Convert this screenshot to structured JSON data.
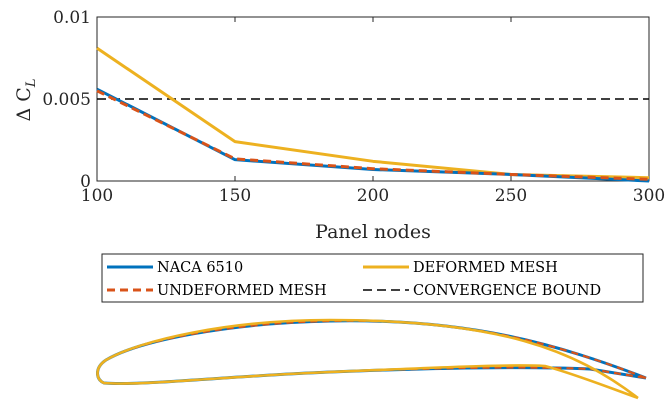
{
  "chart_data": {
    "type": "line",
    "xlabel": "Panel nodes",
    "ylabel": "Δ C",
    "ylabel_sub": "L",
    "xlim": [
      100,
      300
    ],
    "ylim": [
      0,
      0.01
    ],
    "xticks": [
      100,
      150,
      200,
      250,
      300
    ],
    "xtick_labels": [
      "100",
      "150",
      "200",
      "250",
      "300"
    ],
    "yticks": [
      0,
      0.005,
      0.01
    ],
    "ytick_labels": [
      "0",
      "0.005",
      "0.01"
    ],
    "grid": false,
    "legend_placement": "bottom",
    "x": [
      100,
      150,
      200,
      250,
      300
    ],
    "series": [
      {
        "name": "NACA 6510",
        "values": [
          0.0056,
          0.0013,
          0.0007,
          0.0004,
          0.0
        ],
        "color": "#0072BD",
        "style": "solid"
      },
      {
        "name": "UNDEFORMED MESH",
        "values": [
          0.0055,
          0.00135,
          0.00075,
          0.0004,
          0.0001
        ],
        "color": "#D95319",
        "style": "dashed"
      },
      {
        "name": "DEFORMED MESH",
        "values": [
          0.0081,
          0.0024,
          0.0012,
          0.0004,
          0.0002
        ],
        "color": "#EDB120",
        "style": "solid"
      }
    ],
    "reference_line": {
      "name": "CONVERGENCE BOUND",
      "value": 0.005,
      "color": "#000000",
      "style": "dashed"
    }
  },
  "airfoil": {
    "colors": {
      "base": "#0072BD",
      "undeformed": "#D95319",
      "deformed": "#EDB120"
    }
  }
}
